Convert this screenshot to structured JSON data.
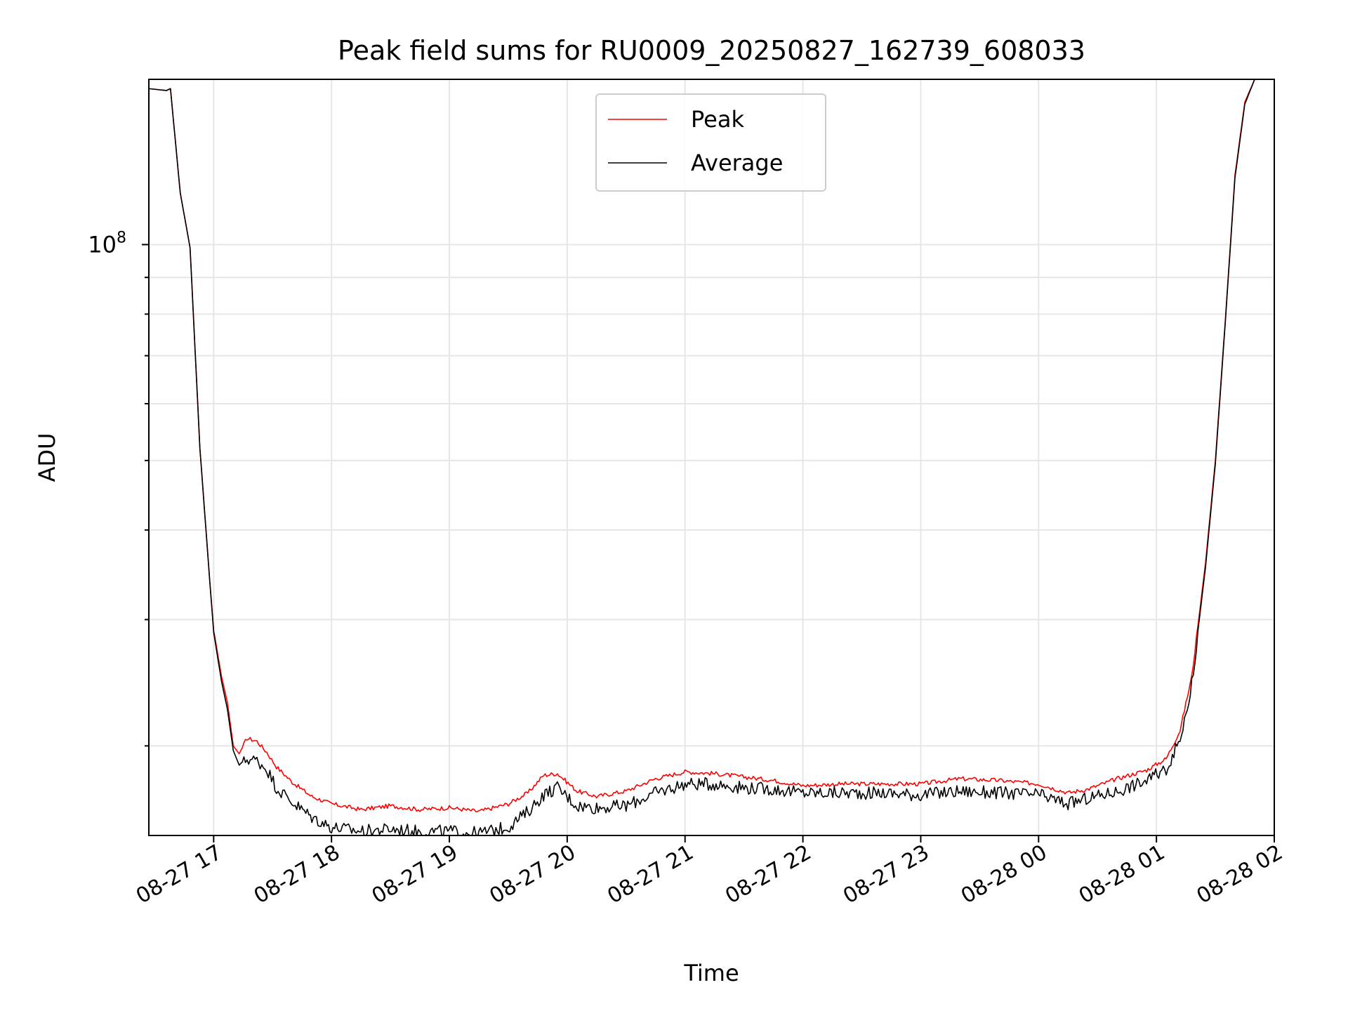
{
  "chart_data": {
    "type": "line",
    "title": "Peak field sums for RU0009_20250827_162739_608033",
    "xlabel": "Time",
    "ylabel": "ADU",
    "yscale": "log",
    "grid": true,
    "legend_position": "upper center",
    "xlim": [
      "2025-08-27 16:27",
      "2025-08-28 02:00"
    ],
    "ylim": [
      15000000,
      170000000
    ],
    "x_ticks": [
      "08-27 17",
      "08-27 18",
      "08-27 19",
      "08-27 20",
      "08-27 21",
      "08-27 22",
      "08-27 23",
      "08-28 00",
      "08-28 01",
      "08-28 02"
    ],
    "y_ticks": [
      {
        "value": 100000000,
        "base": "10",
        "exponent": "8"
      }
    ],
    "series": [
      {
        "name": "Peak",
        "color": "#ff0000",
        "x": [
          "2025-08-27 16:27",
          "2025-08-27 16:36",
          "2025-08-27 16:38",
          "2025-08-27 16:43",
          "2025-08-27 16:48",
          "2025-08-27 16:53",
          "2025-08-27 16:58",
          "2025-08-27 17:00",
          "2025-08-27 17:04",
          "2025-08-27 17:07",
          "2025-08-27 17:10",
          "2025-08-27 17:13",
          "2025-08-27 17:17",
          "2025-08-27 17:22",
          "2025-08-27 17:27",
          "2025-08-27 17:32",
          "2025-08-27 17:40",
          "2025-08-27 17:50",
          "2025-08-27 18:00",
          "2025-08-27 18:15",
          "2025-08-27 18:30",
          "2025-08-27 18:45",
          "2025-08-27 19:00",
          "2025-08-27 19:15",
          "2025-08-27 19:30",
          "2025-08-27 19:40",
          "2025-08-27 19:48",
          "2025-08-27 19:55",
          "2025-08-27 20:05",
          "2025-08-27 20:15",
          "2025-08-27 20:30",
          "2025-08-27 20:45",
          "2025-08-27 21:00",
          "2025-08-27 21:15",
          "2025-08-27 21:30",
          "2025-08-27 21:45",
          "2025-08-27 22:00",
          "2025-08-27 22:20",
          "2025-08-27 22:40",
          "2025-08-27 23:00",
          "2025-08-27 23:20",
          "2025-08-27 23:40",
          "2025-08-28 00:00",
          "2025-08-28 00:15",
          "2025-08-28 00:25",
          "2025-08-28 00:40",
          "2025-08-28 00:55",
          "2025-08-28 01:05",
          "2025-08-28 01:12",
          "2025-08-28 01:18",
          "2025-08-28 01:25",
          "2025-08-28 01:30",
          "2025-08-28 01:35",
          "2025-08-28 01:40",
          "2025-08-28 01:45",
          "2025-08-28 01:50",
          "2025-08-28 01:55"
        ],
        "y": [
          165000000,
          164000000,
          165000000,
          118000000,
          99000000,
          52000000,
          34000000,
          29000000,
          25000000,
          23000000,
          20000000,
          19500000,
          20500000,
          20300000,
          19600000,
          18700000,
          17800000,
          17000000,
          16600000,
          16300000,
          16500000,
          16300000,
          16400000,
          16200000,
          16600000,
          17200000,
          18200000,
          18300000,
          17300000,
          17000000,
          17300000,
          18000000,
          18400000,
          18300000,
          18100000,
          17900000,
          17600000,
          17700000,
          17700000,
          17700000,
          18000000,
          17900000,
          17700000,
          17200000,
          17400000,
          18000000,
          18500000,
          19200000,
          21000000,
          25000000,
          36000000,
          50000000,
          78000000,
          125000000,
          158000000,
          170000000,
          172000000
        ]
      },
      {
        "name": "Average",
        "color": "#000000",
        "x": [
          "2025-08-27 16:27",
          "2025-08-27 16:36",
          "2025-08-27 16:38",
          "2025-08-27 16:43",
          "2025-08-27 16:48",
          "2025-08-27 16:53",
          "2025-08-27 16:58",
          "2025-08-27 17:00",
          "2025-08-27 17:04",
          "2025-08-27 17:07",
          "2025-08-27 17:10",
          "2025-08-27 17:13",
          "2025-08-27 17:17",
          "2025-08-27 17:22",
          "2025-08-27 17:27",
          "2025-08-27 17:32",
          "2025-08-27 17:40",
          "2025-08-27 17:50",
          "2025-08-27 18:00",
          "2025-08-27 18:15",
          "2025-08-27 18:30",
          "2025-08-27 18:45",
          "2025-08-27 19:00",
          "2025-08-27 19:15",
          "2025-08-27 19:30",
          "2025-08-27 19:40",
          "2025-08-27 19:48",
          "2025-08-27 19:55",
          "2025-08-27 20:05",
          "2025-08-27 20:15",
          "2025-08-27 20:30",
          "2025-08-27 20:45",
          "2025-08-27 21:00",
          "2025-08-27 21:15",
          "2025-08-27 21:30",
          "2025-08-27 21:45",
          "2025-08-27 22:00",
          "2025-08-27 22:20",
          "2025-08-27 22:40",
          "2025-08-27 23:00",
          "2025-08-27 23:20",
          "2025-08-27 23:40",
          "2025-08-28 00:00",
          "2025-08-28 00:15",
          "2025-08-28 00:25",
          "2025-08-28 00:40",
          "2025-08-28 00:55",
          "2025-08-28 01:05",
          "2025-08-28 01:12",
          "2025-08-28 01:18",
          "2025-08-28 01:25",
          "2025-08-28 01:30",
          "2025-08-28 01:35",
          "2025-08-28 01:40",
          "2025-08-28 01:45",
          "2025-08-28 01:50",
          "2025-08-28 01:55"
        ],
        "y": [
          165000000,
          164000000,
          165000000,
          118000000,
          99000000,
          52000000,
          34000000,
          28800000,
          24600000,
          22500000,
          19700000,
          18800000,
          19300000,
          19200000,
          18700000,
          17600000,
          16800000,
          16000000,
          15500000,
          15300000,
          15400000,
          15300000,
          15300000,
          15200000,
          15500000,
          16300000,
          17200000,
          17600000,
          16600000,
          16500000,
          16600000,
          17300000,
          17800000,
          17800000,
          17600000,
          17500000,
          17300000,
          17300000,
          17300000,
          17200000,
          17400000,
          17300000,
          17200000,
          16700000,
          17000000,
          17400000,
          18000000,
          18700000,
          20500000,
          24500000,
          35500000,
          49500000,
          77500000,
          124000000,
          157000000,
          170000000,
          172000000
        ]
      }
    ]
  }
}
